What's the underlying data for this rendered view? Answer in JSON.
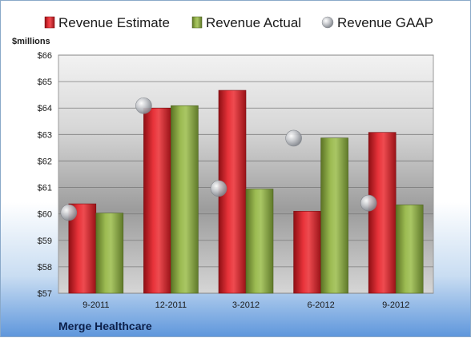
{
  "chart_data": {
    "type": "bar",
    "unit_label": "$millions",
    "categories": [
      "9-2011",
      "12-2011",
      "3-2012",
      "6-2012",
      "9-2012"
    ],
    "series": [
      {
        "name": "Revenue Estimate",
        "kind": "bar",
        "color": "#d42027",
        "values": [
          60.38,
          64.0,
          64.67,
          60.1,
          63.08
        ]
      },
      {
        "name": "Revenue Actual",
        "kind": "bar",
        "color": "#8cab3f",
        "values": [
          60.03,
          64.09,
          60.94,
          62.87,
          60.34
        ]
      },
      {
        "name": "Revenue GAAP",
        "kind": "marker",
        "color": "#b9bcc2",
        "values": [
          60.05,
          64.09,
          60.96,
          62.86,
          60.41
        ]
      }
    ],
    "ylim": [
      57,
      66
    ],
    "yticks": [
      "$57",
      "$58",
      "$59",
      "$60",
      "$61",
      "$62",
      "$63",
      "$64",
      "$65",
      "$66"
    ],
    "ytick_values": [
      57,
      58,
      59,
      60,
      61,
      62,
      63,
      64,
      65,
      66
    ],
    "grid": true,
    "legend_position": "top"
  },
  "company_name": "Merge Healthcare"
}
